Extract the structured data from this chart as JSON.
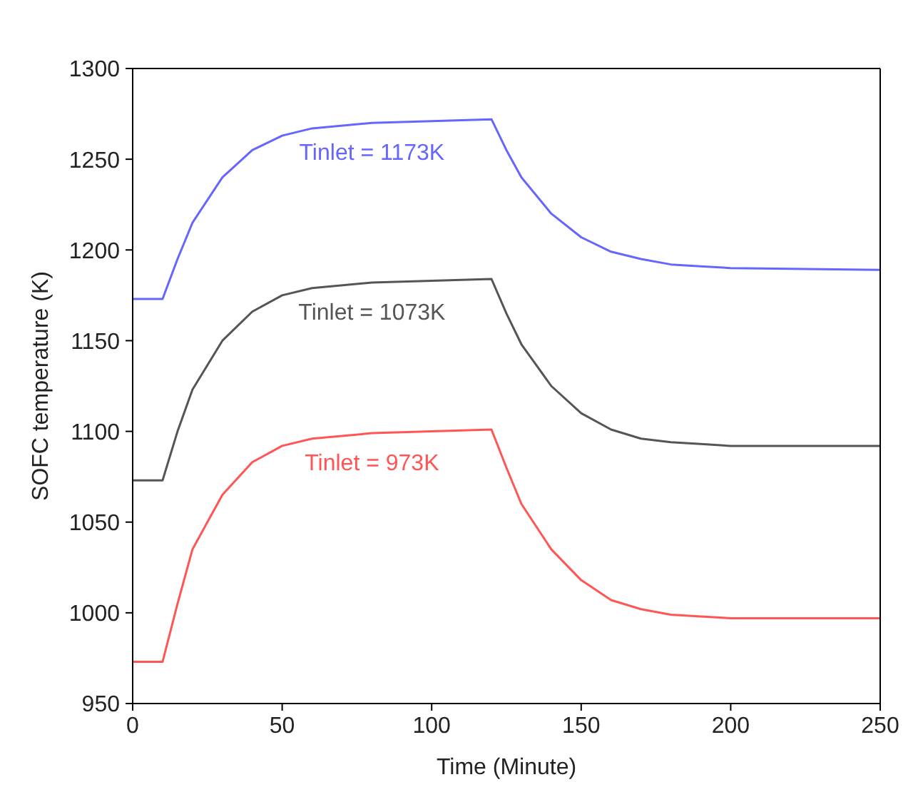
{
  "chart_data": {
    "type": "line",
    "xlabel": "Time (Minute)",
    "ylabel": "SOFC temperature (K)",
    "xlim": [
      0,
      250
    ],
    "xticks": [
      0,
      50,
      100,
      150,
      200,
      250
    ],
    "ylim": [
      950,
      1300
    ],
    "yticks": [
      950,
      1000,
      1050,
      1100,
      1150,
      1200,
      1250,
      1300
    ],
    "marker": "none",
    "line_style": "solid",
    "x": [
      0,
      10,
      15,
      20,
      30,
      40,
      50,
      60,
      80,
      100,
      120,
      125,
      130,
      140,
      150,
      160,
      170,
      180,
      190,
      200,
      250
    ],
    "series": [
      {
        "name": "Tinlet = 1173K",
        "color": "#6666ff",
        "values": [
          1173,
          1173,
          1195,
          1215,
          1240,
          1255,
          1263,
          1267,
          1270,
          1271,
          1272,
          1255,
          1240,
          1220,
          1207,
          1199,
          1195,
          1192,
          1191,
          1190,
          1189
        ]
      },
      {
        "name": "Tinlet = 1073K",
        "color": "#555555",
        "values": [
          1073,
          1073,
          1100,
          1123,
          1150,
          1166,
          1175,
          1179,
          1182,
          1183,
          1184,
          1165,
          1148,
          1125,
          1110,
          1101,
          1096,
          1094,
          1093,
          1092,
          1092
        ]
      },
      {
        "name": "Tinlet = 973K",
        "color": "#ff5555",
        "values": [
          973,
          973,
          1005,
          1035,
          1065,
          1083,
          1092,
          1096,
          1099,
          1100,
          1101,
          1080,
          1060,
          1035,
          1018,
          1007,
          1002,
          999,
          998,
          997,
          997
        ]
      }
    ]
  }
}
